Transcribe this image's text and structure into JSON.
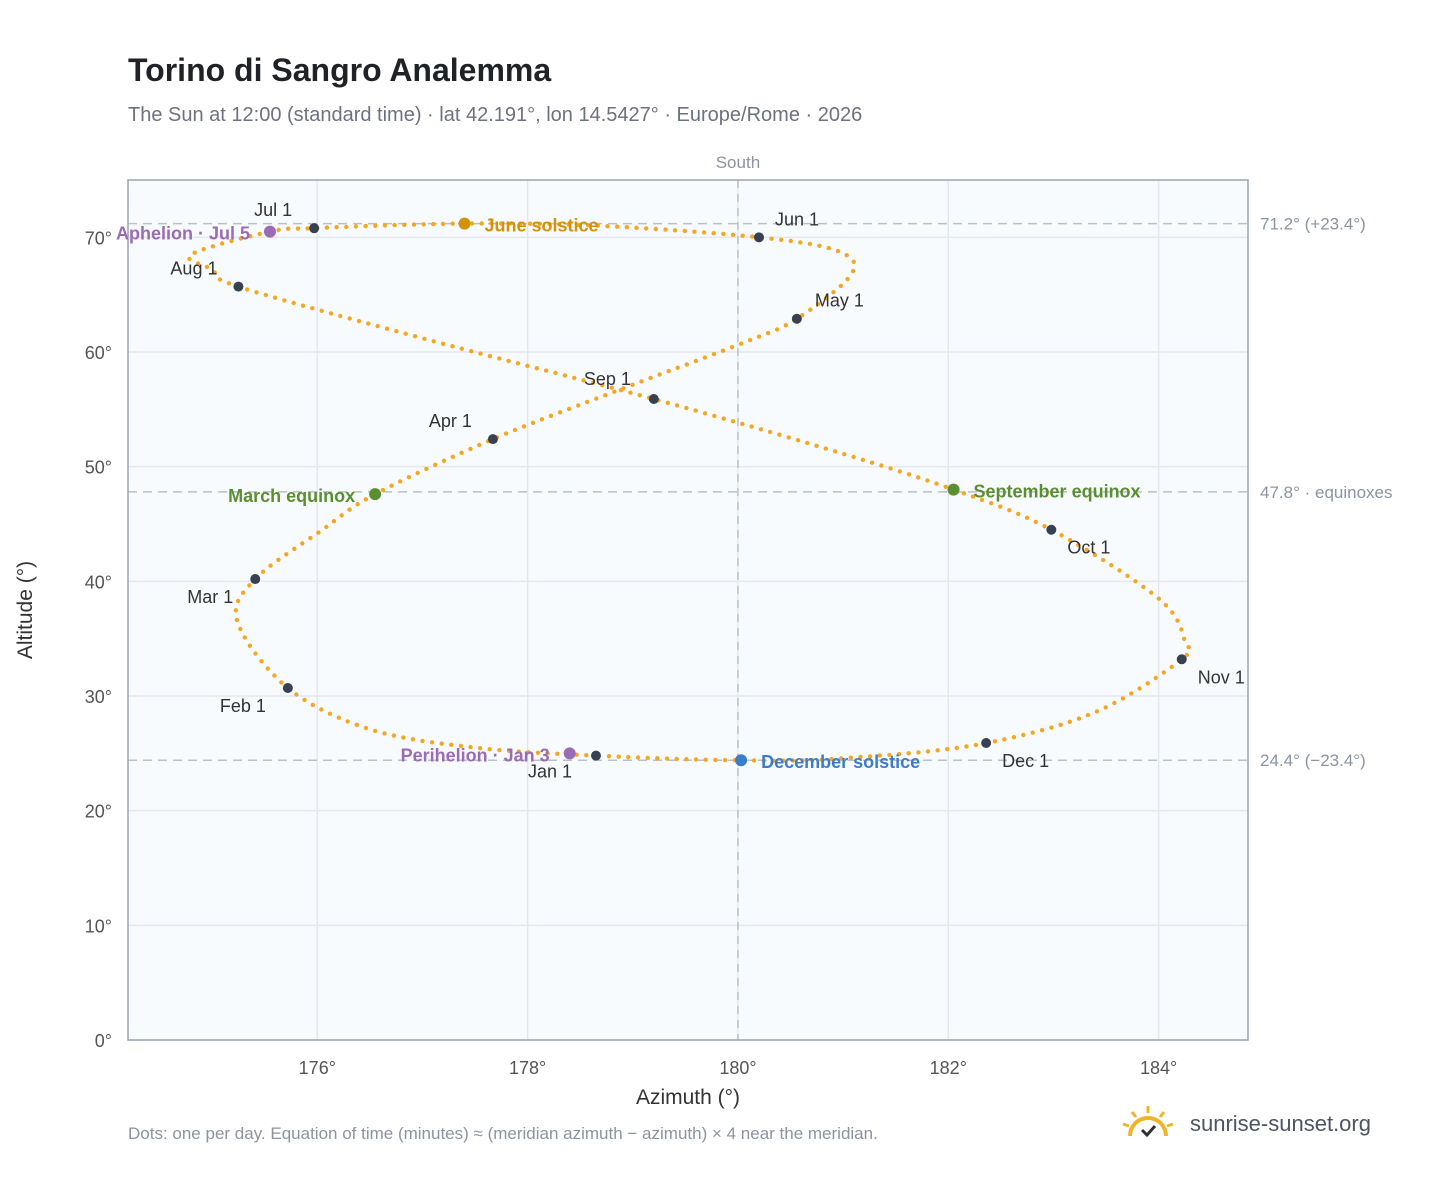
{
  "title": "Torino di Sangro Analemma",
  "subtitle": "The Sun at 12:00 (standard time) · lat 42.191°, lon 14.5427° · Europe/Rome · 2026",
  "footnote": "Dots: one per day. Equation of time (minutes) ≈ (meridian azimuth − azimuth) × 4 near the meridian.",
  "brand": {
    "name": "sunrise-sunset.org",
    "icon": "sun-logo-icon",
    "color": "#f0b429"
  },
  "chart_data": {
    "type": "scatter",
    "xlabel": "Azimuth (°)",
    "ylabel": "Altitude (°)",
    "xlim": [
      174.2,
      184.85
    ],
    "ylim": [
      0,
      75
    ],
    "grid": true,
    "x_ticks": [
      176,
      178,
      180,
      182,
      184
    ],
    "x_tick_labels": [
      "176°",
      "178°",
      "180°",
      "182°",
      "184°"
    ],
    "y_ticks": [
      0,
      10,
      20,
      30,
      40,
      50,
      60,
      70
    ],
    "y_tick_labels": [
      "0°",
      "10°",
      "20°",
      "30°",
      "40°",
      "50°",
      "60°",
      "70°"
    ],
    "meridian": {
      "azimuth": 180,
      "label": "South"
    },
    "reference_lines": [
      {
        "altitude": 71.2,
        "label": "71.2° (+23.4°)"
      },
      {
        "altitude": 47.8,
        "label": "47.8° · equinoxes"
      },
      {
        "altitude": 24.4,
        "label": "24.4° (−23.4°)"
      }
    ],
    "curve_color": "#f5a623",
    "month_color": "#374151",
    "curve_points": [
      [
        178.65,
        24.8
      ],
      [
        177.5,
        25.5
      ],
      [
        176.5,
        27.1
      ],
      [
        175.72,
        30.7
      ],
      [
        175.24,
        36.5
      ],
      [
        175.41,
        40.2
      ],
      [
        176.05,
        44.5
      ],
      [
        176.55,
        47.6
      ],
      [
        177.67,
        52.4
      ],
      [
        178.9,
        56.8
      ],
      [
        180.05,
        60.8
      ],
      [
        180.56,
        62.9
      ],
      [
        181.08,
        66.8
      ],
      [
        180.95,
        68.8
      ],
      [
        180.2,
        70.0
      ],
      [
        178.7,
        71.0
      ],
      [
        177.4,
        71.2
      ],
      [
        175.97,
        70.8
      ],
      [
        175.55,
        70.5
      ],
      [
        174.8,
        68.5
      ],
      [
        175.0,
        67.2
      ],
      [
        175.25,
        65.7
      ],
      [
        177.0,
        61.2
      ],
      [
        179.2,
        55.9
      ],
      [
        180.9,
        51.4
      ],
      [
        182.05,
        48.0
      ],
      [
        182.98,
        44.5
      ],
      [
        184.0,
        38.5
      ],
      [
        184.25,
        34.8
      ],
      [
        184.22,
        33.2
      ],
      [
        183.4,
        28.6
      ],
      [
        182.36,
        25.9
      ],
      [
        181.2,
        24.7
      ],
      [
        180.03,
        24.4
      ],
      [
        178.65,
        24.8
      ]
    ],
    "months": [
      {
        "label": "Jan 1",
        "az": 178.65,
        "alt": 24.8,
        "dx": -68,
        "dy": 22
      },
      {
        "label": "Feb 1",
        "az": 175.72,
        "alt": 30.7,
        "dx": -68,
        "dy": 24
      },
      {
        "label": "Mar 1",
        "az": 175.41,
        "alt": 40.2,
        "dx": -68,
        "dy": 24
      },
      {
        "label": "Apr 1",
        "az": 177.67,
        "alt": 52.4,
        "dx": -64,
        "dy": -12
      },
      {
        "label": "May 1",
        "az": 180.56,
        "alt": 62.9,
        "dx": 18,
        "dy": -12
      },
      {
        "label": "Jun 1",
        "az": 180.2,
        "alt": 70.0,
        "dx": 16,
        "dy": -12
      },
      {
        "label": "Jul 1",
        "az": 175.97,
        "alt": 70.8,
        "dx": -60,
        "dy": -12
      },
      {
        "label": "Aug 1",
        "az": 175.25,
        "alt": 65.7,
        "dx": -68,
        "dy": -12
      },
      {
        "label": "Sep 1",
        "az": 179.2,
        "alt": 55.9,
        "dx": -70,
        "dy": -14
      },
      {
        "label": "Oct 1",
        "az": 182.98,
        "alt": 44.5,
        "dx": 16,
        "dy": 24
      },
      {
        "label": "Nov 1",
        "az": 184.22,
        "alt": 33.2,
        "dx": 16,
        "dy": 24
      },
      {
        "label": "Dec 1",
        "az": 182.36,
        "alt": 25.9,
        "dx": 16,
        "dy": 24
      }
    ],
    "events": [
      {
        "label": "June solstice",
        "az": 177.4,
        "alt": 71.2,
        "color": "#d4920a",
        "dx": 20,
        "dy": 8,
        "anchor": "start"
      },
      {
        "label": "March equinox",
        "az": 176.55,
        "alt": 47.6,
        "color": "#5a8f2f",
        "dx": -20,
        "dy": 8,
        "anchor": "end"
      },
      {
        "label": "September equinox",
        "az": 182.05,
        "alt": 48.0,
        "color": "#5a8f2f",
        "dx": 20,
        "dy": 8,
        "anchor": "start"
      },
      {
        "label": "December solstice",
        "az": 180.03,
        "alt": 24.4,
        "color": "#3d7cc9",
        "dx": 20,
        "dy": 8,
        "anchor": "start"
      },
      {
        "label": "Perihelion · Jan 3",
        "az": 178.4,
        "alt": 25.0,
        "color": "#9b6bb5",
        "dx": -20,
        "dy": 8,
        "anchor": "end"
      },
      {
        "label": "Aphelion · Jul 5",
        "az": 175.55,
        "alt": 70.5,
        "color": "#9b6bb5",
        "dx": -20,
        "dy": 8,
        "anchor": "end"
      }
    ]
  }
}
